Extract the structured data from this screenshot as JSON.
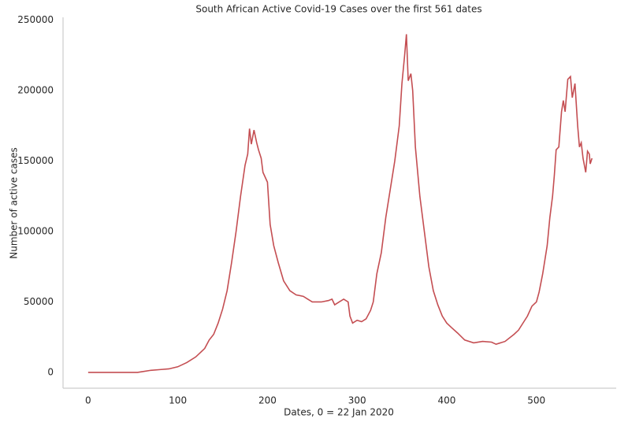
{
  "chart_data": {
    "type": "line",
    "title": "South African Active Covid-19 Cases over the first 561 dates",
    "x_label": "Dates, 0 = 22 Jan 2020",
    "y_label": "Number of active cases",
    "xlim": [
      -28,
      589
    ],
    "ylim": [
      -11200,
      252000
    ],
    "xticks": [
      0,
      100,
      200,
      300,
      400,
      500
    ],
    "yticks": [
      0,
      50000,
      100000,
      150000,
      200000,
      250000
    ],
    "grid": false,
    "series": [
      {
        "name": "Active cases",
        "color": "#c44e52",
        "x": [
          0,
          55,
          60,
          70,
          80,
          90,
          100,
          110,
          120,
          130,
          135,
          140,
          145,
          150,
          155,
          160,
          165,
          170,
          175,
          178,
          180,
          182,
          185,
          188,
          190,
          193,
          195,
          200,
          203,
          207,
          212,
          218,
          225,
          232,
          240,
          245,
          250,
          260,
          268,
          272,
          275,
          280,
          285,
          290,
          292,
          295,
          300,
          305,
          310,
          315,
          318,
          322,
          327,
          332,
          337,
          342,
          347,
          350,
          353,
          355,
          357,
          360,
          362,
          365,
          370,
          375,
          380,
          385,
          390,
          395,
          400,
          405,
          412,
          420,
          430,
          440,
          450,
          455,
          465,
          475,
          480,
          487,
          490,
          495,
          500,
          503,
          507,
          512,
          515,
          518,
          520,
          522,
          525,
          528,
          530,
          532,
          535,
          538,
          540,
          543,
          546,
          548,
          550,
          552,
          555,
          557,
          559,
          560,
          562
        ],
        "values": [
          0,
          0,
          500,
          1500,
          2000,
          2500,
          4000,
          7000,
          11000,
          17000,
          23000,
          27000,
          35000,
          45000,
          58000,
          78000,
          100000,
          125000,
          147000,
          155000,
          173000,
          162000,
          172000,
          163000,
          158000,
          152000,
          142000,
          135000,
          105000,
          90000,
          78000,
          65000,
          58000,
          55000,
          54000,
          52000,
          50000,
          50000,
          51000,
          52000,
          48000,
          50000,
          52000,
          50000,
          40000,
          35000,
          37000,
          36000,
          38000,
          44000,
          50000,
          70000,
          85000,
          110000,
          130000,
          150000,
          175000,
          205000,
          225000,
          240000,
          207000,
          212000,
          200000,
          160000,
          125000,
          100000,
          75000,
          58000,
          48000,
          40000,
          35000,
          32000,
          28000,
          23000,
          21000,
          22000,
          21500,
          20000,
          22000,
          27000,
          30000,
          37000,
          40000,
          47000,
          50000,
          57000,
          70000,
          90000,
          110000,
          125000,
          140000,
          158000,
          160000,
          185000,
          193000,
          185000,
          208000,
          210000,
          195000,
          205000,
          175000,
          160000,
          163000,
          152000,
          142000,
          157000,
          155000,
          148000,
          152000
        ]
      }
    ]
  }
}
